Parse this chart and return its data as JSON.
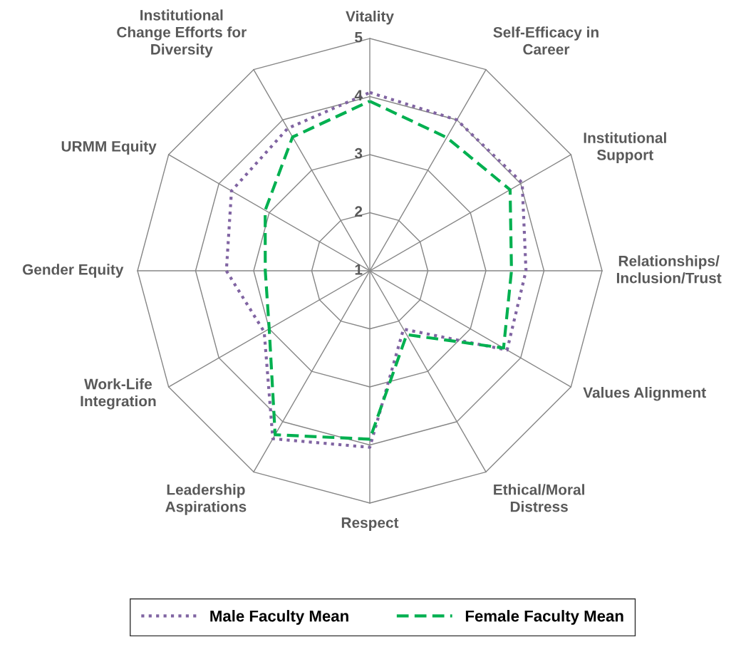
{
  "chart_data": {
    "type": "radar",
    "categories": [
      "Vitality",
      "Self-Efficacy in\nCareer",
      "Institutional\nSupport",
      "Relationships/\nInclusion/Trust",
      "Values Alignment",
      "Ethical/Moral\nDistress",
      "Respect",
      "Leadership\nAspirations",
      "Work-Life\nIntegration",
      "Gender Equity",
      "URMM Equity",
      "Institutional\nChange Efforts for\nDiversity"
    ],
    "series": [
      {
        "name": "Male Faculty Mean",
        "color": "#8064a2",
        "line_style": "dotted",
        "values": [
          4.07,
          4.0,
          4.03,
          3.69,
          3.73,
          2.16,
          4.04,
          4.34,
          3.1,
          3.47,
          3.75,
          3.83
        ]
      },
      {
        "name": "Female Faculty Mean",
        "color": "#00b050",
        "line_style": "dashed",
        "values": [
          3.92,
          3.65,
          3.79,
          3.44,
          3.66,
          2.27,
          3.9,
          4.26,
          3.0,
          2.8,
          3.08,
          3.66
        ]
      }
    ],
    "ylim": [
      1,
      5
    ],
    "yticks": [
      1,
      2,
      3,
      4,
      5
    ],
    "legend": "bottom",
    "grid": true
  }
}
